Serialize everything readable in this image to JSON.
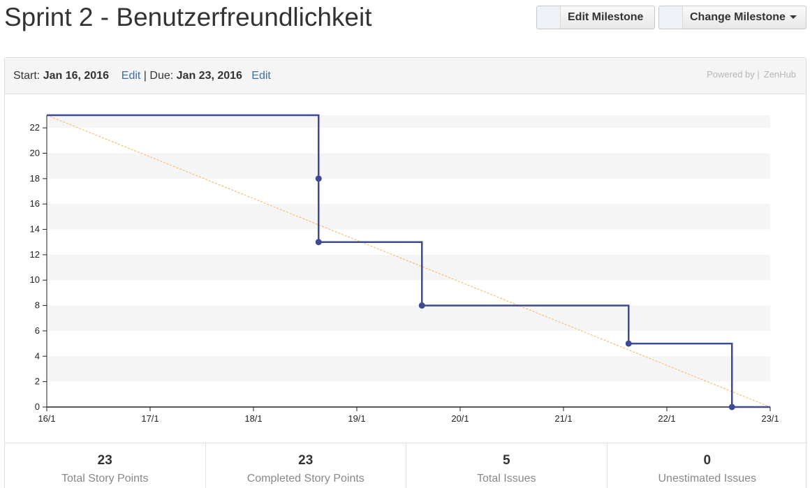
{
  "page": {
    "title": "Sprint 2 - Benutzerfreundlichkeit"
  },
  "toolbar": {
    "edit_label": "Edit Milestone",
    "change_label": "Change Milestone"
  },
  "header": {
    "start_label": "Start:",
    "start_date": "Jan 16, 2016",
    "edit_link": "Edit",
    "separator": "|",
    "due_label": "Due:",
    "due_date": "Jan 23, 2016",
    "powered_by": "Powered by |",
    "brand": "ZenHub"
  },
  "colors": {
    "actual_line": "#3f4a94",
    "ideal_line": "#f5b55a",
    "stripe": "#f5f5f5"
  },
  "chart_data": {
    "type": "line",
    "x_ticks": [
      "16/1",
      "17/1",
      "18/1",
      "19/1",
      "20/1",
      "21/1",
      "22/1",
      "23/1"
    ],
    "xlim": [
      0,
      7
    ],
    "ylim": [
      0,
      23
    ],
    "y_ticks": [
      0,
      2,
      4,
      6,
      8,
      10,
      12,
      14,
      16,
      18,
      20,
      22
    ],
    "grid": "alternating horizontal bands",
    "series": [
      {
        "style": "step",
        "x": [
          0,
          2.63,
          2.63,
          2.63,
          3.63,
          3.63,
          5.63,
          5.63,
          6.63,
          6.63,
          7
        ],
        "y": [
          23,
          23,
          18,
          13,
          13,
          8,
          8,
          5,
          5,
          0,
          0
        ],
        "markers": [
          {
            "x": 2.63,
            "y": 18
          },
          {
            "x": 2.63,
            "y": 13
          },
          {
            "x": 3.63,
            "y": 8
          },
          {
            "x": 5.63,
            "y": 5
          },
          {
            "x": 6.63,
            "y": 0
          }
        ]
      },
      {
        "style": "dashed",
        "x": [
          0,
          7
        ],
        "y": [
          23,
          0
        ]
      }
    ]
  },
  "stats": [
    {
      "value": "23",
      "label": "Total Story Points"
    },
    {
      "value": "23",
      "label": "Completed Story Points"
    },
    {
      "value": "5",
      "label": "Total Issues"
    },
    {
      "value": "0",
      "label": "Unestimated Issues"
    }
  ]
}
